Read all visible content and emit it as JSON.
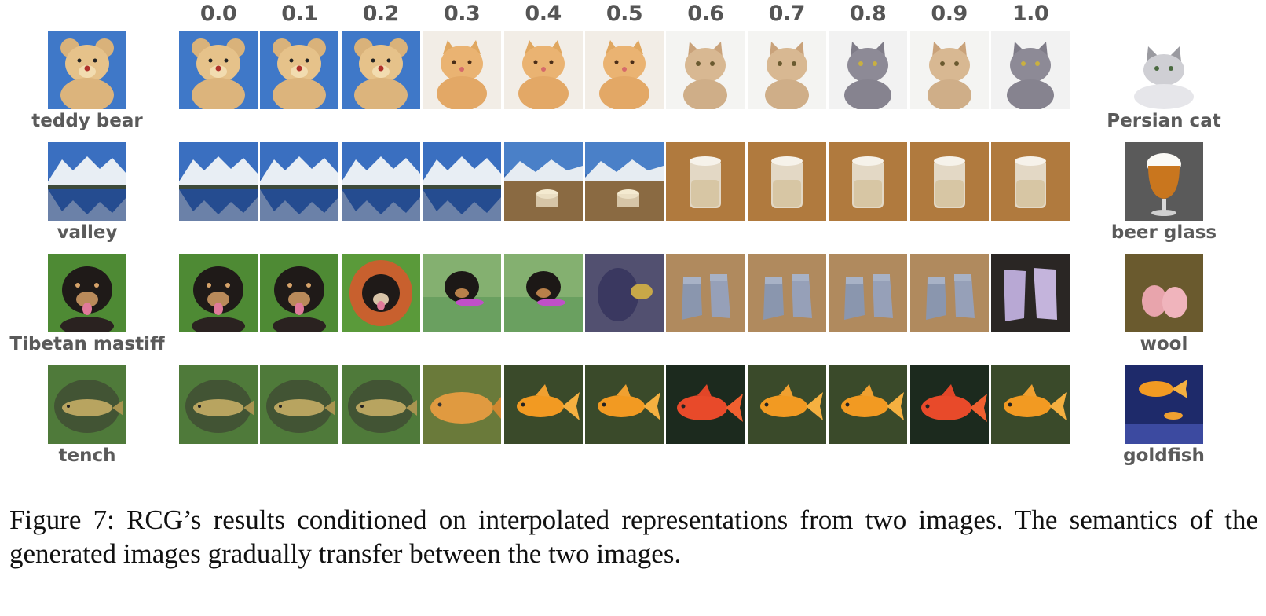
{
  "alphas": [
    "0.0",
    "0.1",
    "0.2",
    "0.3",
    "0.4",
    "0.5",
    "0.6",
    "0.7",
    "0.8",
    "0.9",
    "1.0"
  ],
  "rows": [
    {
      "left_label": "teddy bear",
      "right_label": "Persian cat",
      "left_image": "teddy-bear-image",
      "right_image": "persian-cat-image",
      "tiles": [
        "bear",
        "bear",
        "bear",
        "bearcat",
        "bearcat",
        "bearcat",
        "cat",
        "cat",
        "greycat",
        "cat",
        "greycat"
      ]
    },
    {
      "left_label": "valley",
      "right_label": "beer glass",
      "left_image": "valley-image",
      "right_image": "beer-glass-image",
      "tiles": [
        "valley",
        "valley",
        "valley",
        "valley",
        "valleyglass",
        "valleyglass",
        "glass",
        "glass",
        "glass",
        "glass",
        "glass"
      ]
    },
    {
      "left_label": "Tibetan mastiff",
      "right_label": "wool",
      "left_image": "tibetan-mastiff-image",
      "right_image": "wool-image",
      "tiles": [
        "dog",
        "dog",
        "doghood",
        "dogwool",
        "dogwool",
        "wooldark",
        "wool",
        "wool",
        "wool",
        "wool",
        "woolpurple"
      ]
    },
    {
      "left_label": "tench",
      "right_label": "goldfish",
      "left_image": "tench-image",
      "right_image": "goldfish-image",
      "tiles": [
        "tench",
        "tench",
        "tench",
        "goldtench",
        "goldfish",
        "goldfish",
        "redfish",
        "goldfish",
        "goldfish",
        "redfish",
        "goldfish"
      ]
    }
  ],
  "caption": "Figure 7: RCG’s results conditioned on interpolated representations from two images. The semantics of the generated images gradually transfer between the two images.",
  "colors": {
    "label_gray": "#5a5a5a",
    "alpha_gray": "#555555"
  }
}
